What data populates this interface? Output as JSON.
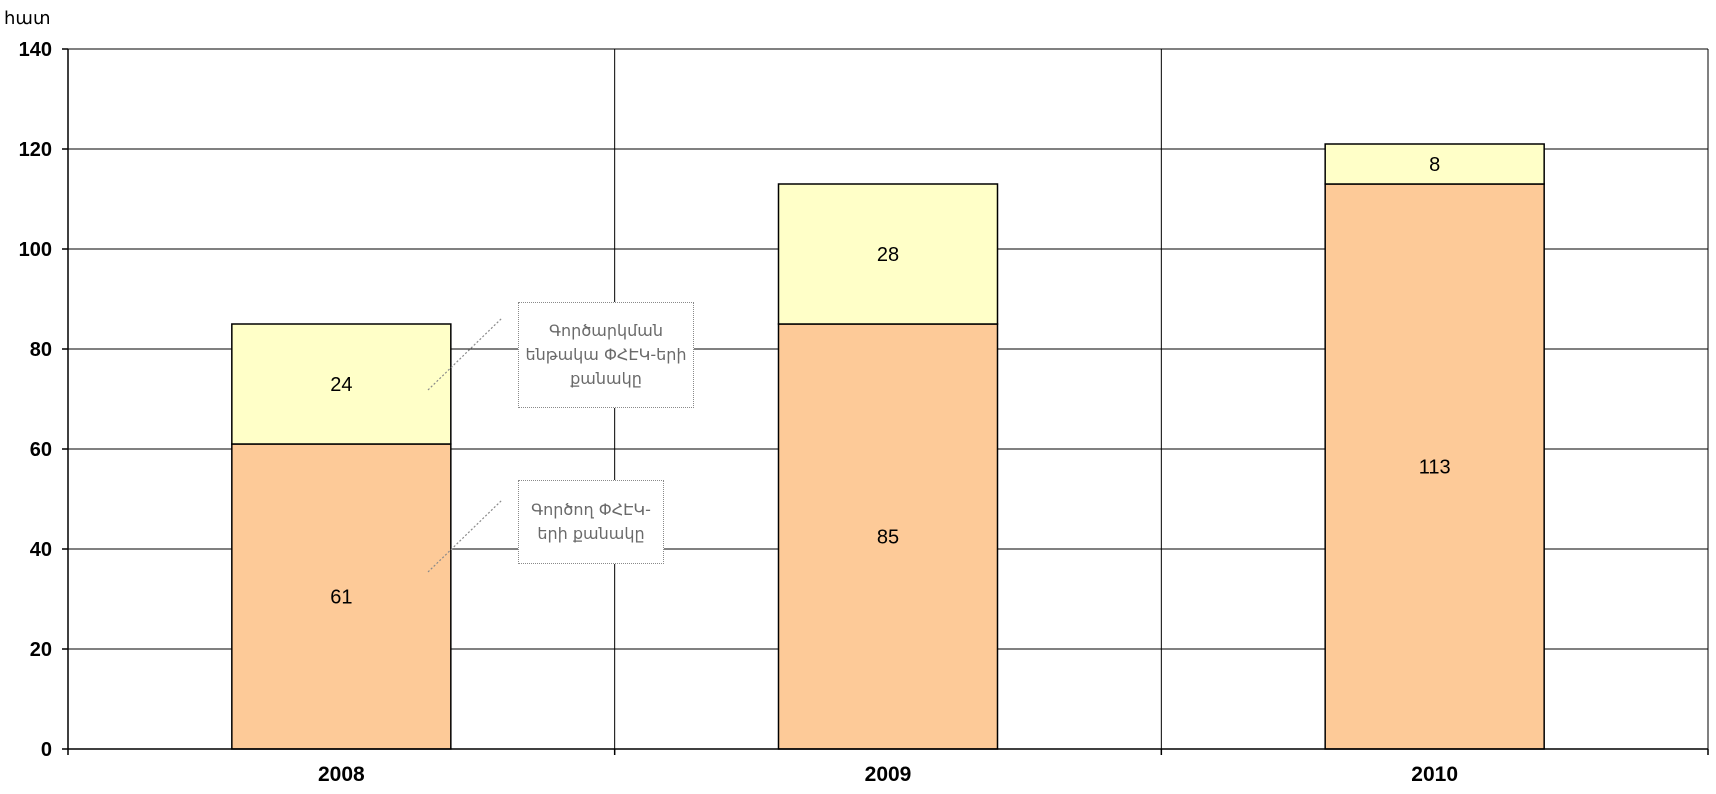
{
  "chart_data": {
    "type": "bar",
    "stacked": true,
    "ylabel": "հատ",
    "ylim": [
      0,
      140
    ],
    "yticks": [
      0,
      20,
      40,
      60,
      80,
      100,
      120,
      140
    ],
    "grid": true,
    "categories": [
      "2008",
      "2009",
      "2010"
    ],
    "series": [
      {
        "name": "Գործող ՓՀԷԿ-երի քանակը",
        "values": [
          61,
          85,
          113
        ],
        "color": "#fdca98"
      },
      {
        "name": "Գործարկման ենթակա ՓՀԷԿ-երի քանակը",
        "values": [
          24,
          28,
          8
        ],
        "color": "#ffffc8"
      }
    ],
    "legend": "callouts next to 2008 bar"
  }
}
